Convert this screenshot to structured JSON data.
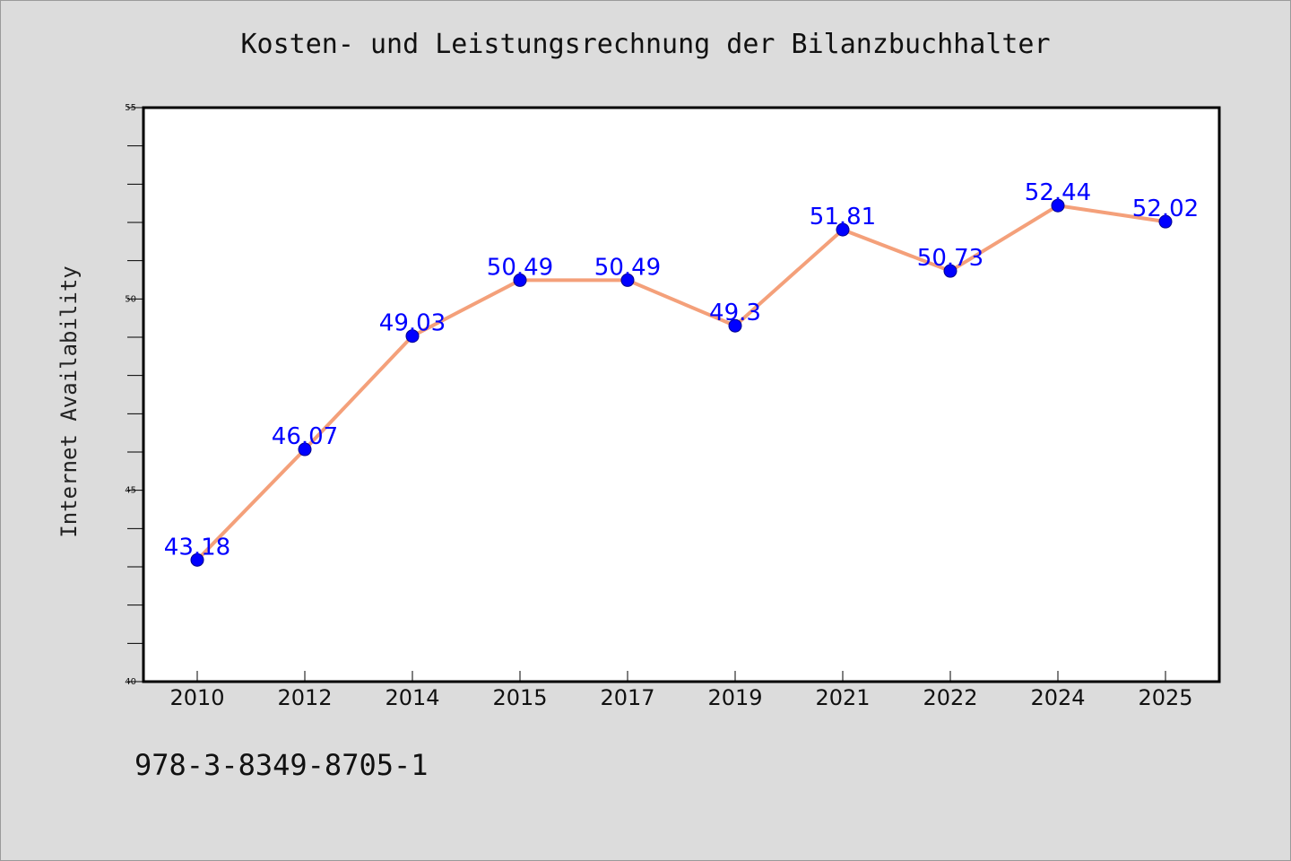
{
  "chart_data": {
    "type": "line",
    "title": "Kosten- und Leistungsrechnung der Bilanzbuchhalter",
    "xlabel": "",
    "ylabel": "Internet Availability",
    "categories": [
      "2010",
      "2012",
      "2014",
      "2015",
      "2017",
      "2019",
      "2021",
      "2022",
      "2024",
      "2025"
    ],
    "series": [
      {
        "values": [
          43.18,
          46.07,
          49.03,
          50.49,
          50.49,
          49.3,
          51.81,
          50.73,
          52.44,
          52.02
        ],
        "data_labels": [
          "43.18",
          "46.07",
          "49.03",
          "50.49",
          "50.49",
          "49.3",
          "51.81",
          "50.73",
          "52.44",
          "52.02"
        ]
      }
    ],
    "ylim": [
      40,
      55
    ],
    "y_tick_labels": [
      "40",
      "45",
      "50",
      "55"
    ],
    "grid": false,
    "legend": "none",
    "colors": {
      "line": "#f4a07a",
      "marker": "#0000ff",
      "data_label": "#0000ff",
      "plot_background": "#ffffff",
      "figure_background": "#dcdcdc"
    }
  },
  "footer": {
    "isbn": "978-3-8349-8705-1"
  }
}
